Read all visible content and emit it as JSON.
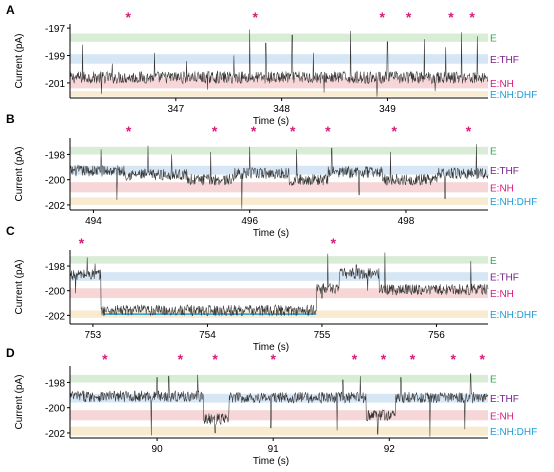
{
  "figure": {
    "ylabel": "Current (pA)",
    "xlabel": "Time (s)",
    "state_labels": [
      "E",
      "E:THF",
      "E:NH",
      "E:NH:DHF"
    ],
    "state_label_colors": [
      "#2fa84f",
      "#7a1f8c",
      "#d81b7a",
      "#1f9bd8"
    ],
    "band_colors": [
      "#d8ecd6",
      "#d6e6f5",
      "#f6d6d6",
      "#f8ebd0"
    ],
    "marker_color": "#d81b7a",
    "trace_color": "#333333",
    "baseline_color": "#1f9bd8"
  },
  "chart_data": [
    {
      "panel": "A",
      "type": "line",
      "xlabel": "Time (s)",
      "ylabel": "Current (pA)",
      "xlim": [
        346.0,
        349.95
      ],
      "ylim": [
        -202.1,
        -196.7
      ],
      "xticks": [
        347,
        348,
        349
      ],
      "yticks": [
        -197,
        -199,
        -201
      ],
      "bands": [
        [
          -198.0,
          -197.4
        ],
        [
          -199.6,
          -198.9
        ],
        [
          -201.4,
          -200.6
        ],
        [
          -202.0,
          -201.6
        ]
      ],
      "markers": [
        346.55,
        347.75,
        348.95,
        349.2,
        349.6,
        349.8
      ],
      "baseline_level": -201.0,
      "segments": [
        [
          346.0,
          349.95,
          -200.6
        ]
      ],
      "spikes": [
        [
          346.12,
          -198.2
        ],
        [
          346.4,
          -199.6
        ],
        [
          346.8,
          -198.8
        ],
        [
          347.1,
          -199.4
        ],
        [
          347.55,
          -199.0
        ],
        [
          347.7,
          -197.1
        ],
        [
          347.85,
          -198.1
        ],
        [
          348.1,
          -197.5
        ],
        [
          348.3,
          -198.8
        ],
        [
          348.65,
          -197.2
        ],
        [
          349.0,
          -198.0
        ],
        [
          349.35,
          -197.8
        ],
        [
          349.55,
          -198.4
        ],
        [
          349.7,
          -197.3
        ],
        [
          349.85,
          -197.6
        ]
      ],
      "dips": [
        [
          346.3,
          -201.8
        ],
        [
          347.3,
          -201.5
        ],
        [
          348.4,
          -201.7
        ],
        [
          348.9,
          -202.0
        ],
        [
          349.45,
          -201.6
        ]
      ]
    },
    {
      "panel": "B",
      "type": "line",
      "xlabel": "Time (s)",
      "ylabel": "Current (pA)",
      "xlim": [
        493.7,
        499.05
      ],
      "ylim": [
        -202.4,
        -196.7
      ],
      "xticks": [
        494,
        496,
        498
      ],
      "yticks": [
        -198,
        -200,
        -202
      ],
      "bands": [
        [
          -198.0,
          -197.4
        ],
        [
          -199.6,
          -198.9
        ],
        [
          -201.0,
          -200.2
        ],
        [
          -202.0,
          -201.4
        ]
      ],
      "markers": [
        494.45,
        495.55,
        496.05,
        496.55,
        497.0,
        497.85,
        498.8
      ],
      "baseline_level": -200.1,
      "segments": [
        [
          493.7,
          494.4,
          -199.3
        ],
        [
          494.4,
          495.2,
          -199.6
        ],
        [
          495.2,
          495.8,
          -200.0
        ],
        [
          495.8,
          496.5,
          -199.5
        ],
        [
          496.5,
          497.0,
          -200.0
        ],
        [
          497.0,
          497.7,
          -199.4
        ],
        [
          497.7,
          498.4,
          -200.0
        ],
        [
          498.4,
          499.05,
          -199.5
        ]
      ],
      "spikes": [
        [
          494.1,
          -197.6
        ],
        [
          494.7,
          -197.3
        ],
        [
          495.0,
          -198.0
        ],
        [
          495.5,
          -197.8
        ],
        [
          496.0,
          -197.4
        ],
        [
          496.6,
          -197.6
        ],
        [
          497.05,
          -197.5
        ],
        [
          497.8,
          -197.8
        ],
        [
          498.9,
          -197.2
        ]
      ],
      "dips": [
        [
          494.3,
          -201.6
        ],
        [
          495.9,
          -202.3
        ],
        [
          497.4,
          -201.2
        ],
        [
          498.5,
          -201.5
        ]
      ]
    },
    {
      "panel": "C",
      "type": "line",
      "xlabel": "Time (s)",
      "ylabel": "Current (pA)",
      "xlim": [
        752.8,
        756.45
      ],
      "ylim": [
        -202.7,
        -196.7
      ],
      "xticks": [
        753,
        754,
        755,
        756
      ],
      "yticks": [
        -198,
        -200,
        -202
      ],
      "bands": [
        [
          -197.8,
          -197.2
        ],
        [
          -199.2,
          -198.5
        ],
        [
          -200.6,
          -199.8
        ],
        [
          -202.2,
          -201.6
        ]
      ],
      "markers": [
        752.9,
        755.1
      ],
      "baseline_level": -201.9,
      "baseline_range": [
        753.1,
        754.95
      ],
      "segments": [
        [
          752.8,
          753.07,
          -198.7
        ],
        [
          753.07,
          754.95,
          -201.6
        ],
        [
          754.95,
          755.15,
          -199.8
        ],
        [
          755.15,
          755.5,
          -198.6
        ],
        [
          755.5,
          756.45,
          -199.9
        ]
      ],
      "spikes": [
        [
          752.95,
          -197.3
        ],
        [
          753.02,
          -197.8
        ],
        [
          755.05,
          -197.0
        ],
        [
          755.3,
          -197.9
        ],
        [
          755.55,
          -196.9
        ],
        [
          756.3,
          -197.6
        ]
      ],
      "dips": [
        [
          752.85,
          -200.2
        ],
        [
          755.0,
          -200.6
        ],
        [
          755.4,
          -200.0
        ]
      ]
    },
    {
      "panel": "D",
      "type": "line",
      "xlabel": "Time (s)",
      "ylabel": "Current (pA)",
      "xlim": [
        89.25,
        92.85
      ],
      "ylim": [
        -202.4,
        -196.7
      ],
      "xticks": [
        90,
        91,
        92
      ],
      "yticks": [
        -198,
        -200,
        -202
      ],
      "bands": [
        [
          -198.0,
          -197.4
        ],
        [
          -199.6,
          -198.9
        ],
        [
          -201.0,
          -200.2
        ],
        [
          -202.2,
          -201.5
        ]
      ],
      "markers": [
        89.55,
        90.2,
        90.5,
        91.0,
        91.7,
        91.95,
        92.2,
        92.55,
        92.8
      ],
      "baseline_level": -199.3,
      "segments": [
        [
          89.25,
          90.4,
          -199.1
        ],
        [
          90.4,
          90.62,
          -200.9
        ],
        [
          90.62,
          91.8,
          -199.2
        ],
        [
          91.8,
          92.05,
          -200.6
        ],
        [
          92.05,
          92.85,
          -199.2
        ]
      ],
      "spikes": [
        [
          90.0,
          -197.6
        ],
        [
          90.1,
          -197.5
        ],
        [
          90.35,
          -197.4
        ],
        [
          91.6,
          -197.8
        ],
        [
          91.75,
          -197.5
        ],
        [
          92.1,
          -197.6
        ],
        [
          92.7,
          -197.3
        ]
      ],
      "dips": [
        [
          89.95,
          -202.2
        ],
        [
          90.5,
          -202.0
        ],
        [
          90.98,
          -201.6
        ],
        [
          91.55,
          -201.8
        ],
        [
          91.9,
          -202.1
        ],
        [
          92.35,
          -202.3
        ],
        [
          92.65,
          -201.7
        ]
      ]
    }
  ]
}
